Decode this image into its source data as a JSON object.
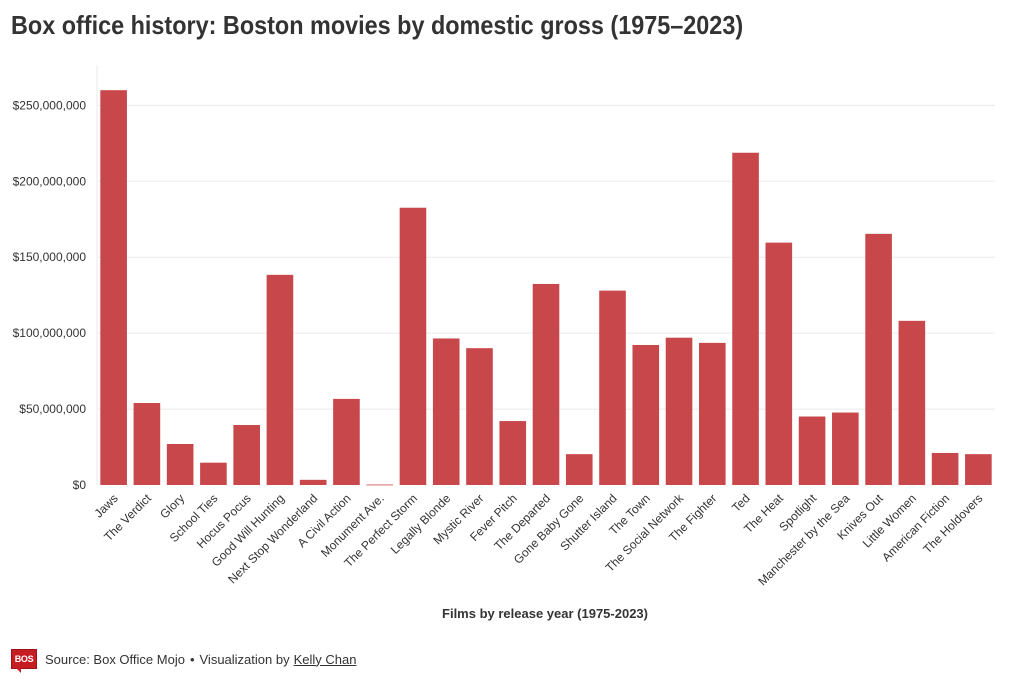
{
  "colors": {
    "bar": "#c8474a",
    "grid": "#ebebeb",
    "text": "#333333",
    "brand": "#c61d23"
  },
  "footer": {
    "logo_text": "BOS",
    "source": "Source: Box Office Mojo",
    "separator": "•",
    "viz_prefix": "Visualization by",
    "author": "Kelly Chan"
  },
  "chart_data": {
    "type": "bar",
    "title": "Box office history: Boston movies by domestic gross (1975–2023)",
    "xlabel": "Films by release year (1975-2023)",
    "ylabel": "",
    "ylim": [
      0,
      270000000
    ],
    "yticks": [
      0,
      50000000,
      100000000,
      150000000,
      200000000,
      250000000
    ],
    "ytick_labels": [
      "$0",
      "$50,000,000",
      "$100,000,000",
      "$150,000,000",
      "$200,000,000",
      "$250,000,000"
    ],
    "grid": true,
    "categories": [
      "Jaws",
      "The Verdict",
      "Glory",
      "School Ties",
      "Hocus Pocus",
      "Good Will Hunting",
      "Next Stop Wonderland",
      "A Civil Action",
      "Monument Ave.",
      "The Perfect Storm",
      "Legally Blonde",
      "Mystic River",
      "Fever Pitch",
      "The Departed",
      "Gone Baby Gone",
      "Shutter Island",
      "The Town",
      "The Social Network",
      "The Fighter",
      "Ted",
      "The Heat",
      "Spotlight",
      "Manchester by the Sea",
      "Knives Out",
      "Little Women",
      "American Fiction",
      "The Holdovers"
    ],
    "values": [
      260000000,
      54000000,
      27000000,
      14700000,
      39500000,
      138400000,
      3400000,
      56700000,
      300000,
      182600000,
      96500000,
      90100000,
      42100000,
      132400000,
      20300000,
      128000000,
      92200000,
      97000000,
      93600000,
      218800000,
      159600000,
      45100000,
      47700000,
      165400000,
      108100000,
      21100000,
      20300000
    ]
  }
}
